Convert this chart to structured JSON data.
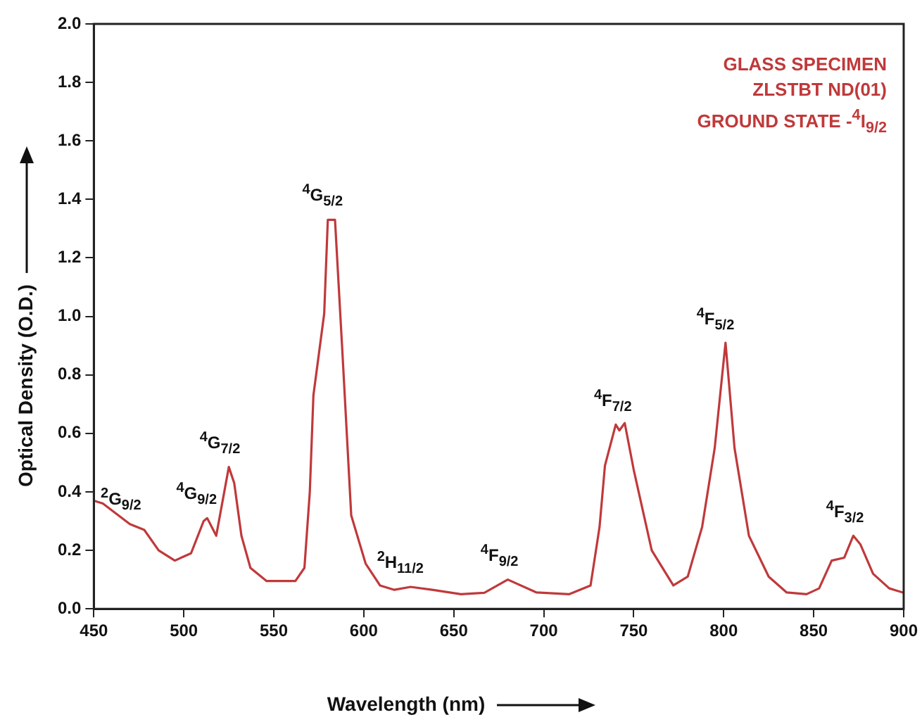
{
  "chart_data": {
    "type": "line",
    "xlabel": "Wavelength (nm)",
    "ylabel": "Optical Density (O.D.)",
    "x": [
      450,
      455,
      470,
      478,
      486,
      495,
      504,
      511,
      513,
      518,
      525,
      528,
      532,
      537,
      546,
      562,
      567,
      570,
      572,
      578,
      580,
      584,
      588,
      593,
      601,
      609,
      617,
      626,
      638,
      654,
      667,
      680,
      696,
      714,
      726,
      731,
      734,
      740,
      742,
      745,
      750,
      760,
      772,
      780,
      788,
      795,
      801,
      806,
      814,
      825,
      835,
      846,
      853,
      860,
      867,
      872,
      876,
      883,
      892,
      900
    ],
    "series": [
      {
        "color": "#c0393b",
        "values": [
          0.37,
          0.36,
          0.29,
          0.27,
          0.2,
          0.165,
          0.19,
          0.3,
          0.31,
          0.25,
          0.485,
          0.43,
          0.25,
          0.14,
          0.095,
          0.095,
          0.14,
          0.4,
          0.73,
          1.01,
          1.33,
          1.33,
          0.89,
          0.32,
          0.155,
          0.08,
          0.065,
          0.075,
          0.065,
          0.05,
          0.055,
          0.1,
          0.056,
          0.05,
          0.08,
          0.28,
          0.49,
          0.63,
          0.61,
          0.635,
          0.475,
          0.2,
          0.08,
          0.11,
          0.28,
          0.55,
          0.91,
          0.55,
          0.25,
          0.11,
          0.056,
          0.05,
          0.07,
          0.165,
          0.175,
          0.25,
          0.22,
          0.12,
          0.07,
          0.055
        ]
      }
    ],
    "xlim": [
      450,
      900
    ],
    "ylim": [
      0,
      2
    ],
    "xticks": [
      450,
      500,
      550,
      600,
      650,
      700,
      750,
      800,
      850,
      900
    ],
    "yticks": [
      {
        "value": 0,
        "label": "0.0"
      },
      {
        "value": 0.2,
        "label": "0.2"
      },
      {
        "value": 0.4,
        "label": "0.4"
      },
      {
        "value": 0.6,
        "label": "0.6"
      },
      {
        "value": 0.8,
        "label": "0.8"
      },
      {
        "value": 1,
        "label": "1.0"
      },
      {
        "value": 1.2,
        "label": "1.2"
      },
      {
        "value": 1.4,
        "label": "1.4"
      },
      {
        "value": 1.6,
        "label": "1.6"
      },
      {
        "value": 1.8,
        "label": "1.8"
      },
      {
        "value": 2,
        "label": "2.0"
      }
    ],
    "grid": false,
    "legend": false,
    "marker": "none",
    "line_style": "solid",
    "annotations": [
      "GLASS SPECIMEN",
      "ZLSTBT ND(01)",
      "GROUND STATE -$^{4}$I$_{9/2}$",
      {
        "text": "$^{2}$G$_{9/2}$",
        "x": 470,
        "y": 0.29
      },
      {
        "text": "$^{4}$G$_{9/2}$",
        "x": 512,
        "y": 0.31
      },
      {
        "text": "$^{4}$G$_{7/2}$",
        "x": 525,
        "y": 0.485
      },
      {
        "text": "$^{4}$G$_{5/2}$",
        "x": 582,
        "y": 1.33
      },
      {
        "text": "$^{2}$H$_{11/2}$",
        "x": 626,
        "y": 0.075
      },
      {
        "text": "$^{4}$F$_{9/2}$",
        "x": 680,
        "y": 0.1
      },
      {
        "text": "$^{4}$F$_{7/2}$",
        "x": 743,
        "y": 0.63
      },
      {
        "text": "$^{4}$F$_{5/2}$",
        "x": 800,
        "y": 0.91
      },
      {
        "text": "$^{4}$F$_{3/2}$",
        "x": 872,
        "y": 0.25
      }
    ]
  }
}
